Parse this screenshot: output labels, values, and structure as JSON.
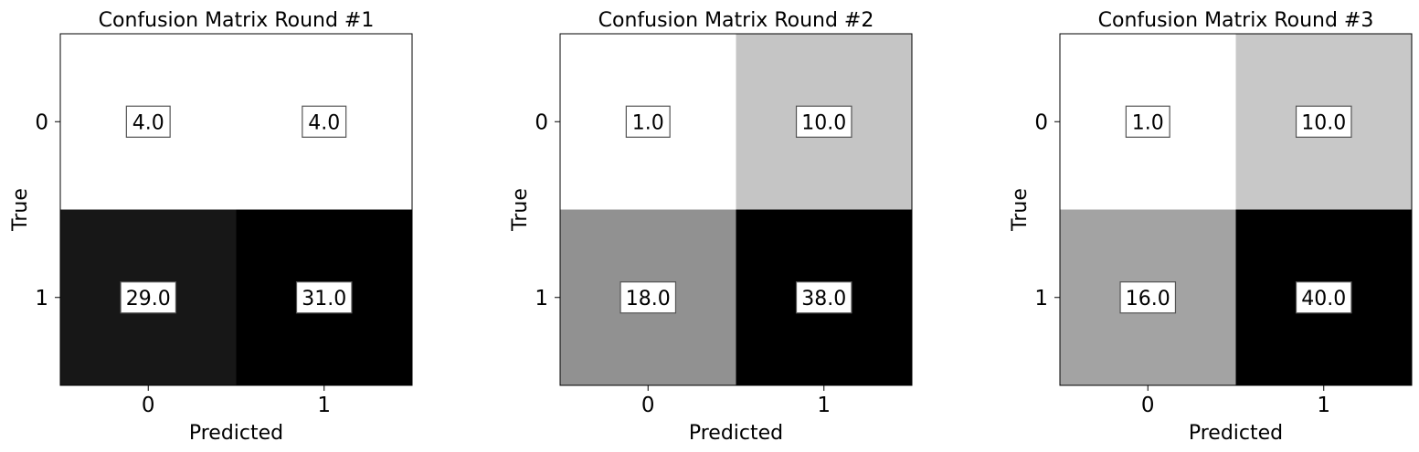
{
  "chart_data": [
    {
      "type": "heatmap",
      "title": "Confusion Matrix Round #1",
      "xlabel": "Predicted",
      "ylabel": "True",
      "x_ticks": [
        "0",
        "1"
      ],
      "y_ticks": [
        "0",
        "1"
      ],
      "matrix": [
        [
          4.0,
          4.0
        ],
        [
          29.0,
          31.0
        ]
      ],
      "labels": [
        [
          "4.0",
          "4.0"
        ],
        [
          "29.0",
          "31.0"
        ]
      ],
      "colormap": "greys"
    },
    {
      "type": "heatmap",
      "title": "Confusion Matrix Round #2",
      "xlabel": "Predicted",
      "ylabel": "True",
      "x_ticks": [
        "0",
        "1"
      ],
      "y_ticks": [
        "0",
        "1"
      ],
      "matrix": [
        [
          1.0,
          10.0
        ],
        [
          18.0,
          38.0
        ]
      ],
      "labels": [
        [
          "1.0",
          "10.0"
        ],
        [
          "18.0",
          "38.0"
        ]
      ],
      "colormap": "greys"
    },
    {
      "type": "heatmap",
      "title": "Confusion Matrix Round #3",
      "xlabel": "Predicted",
      "ylabel": "True",
      "x_ticks": [
        "0",
        "1"
      ],
      "y_ticks": [
        "0",
        "1"
      ],
      "matrix": [
        [
          1.0,
          10.0
        ],
        [
          16.0,
          40.0
        ]
      ],
      "labels": [
        [
          "1.0",
          "10.0"
        ],
        [
          "16.0",
          "40.0"
        ]
      ],
      "colormap": "greys"
    }
  ]
}
